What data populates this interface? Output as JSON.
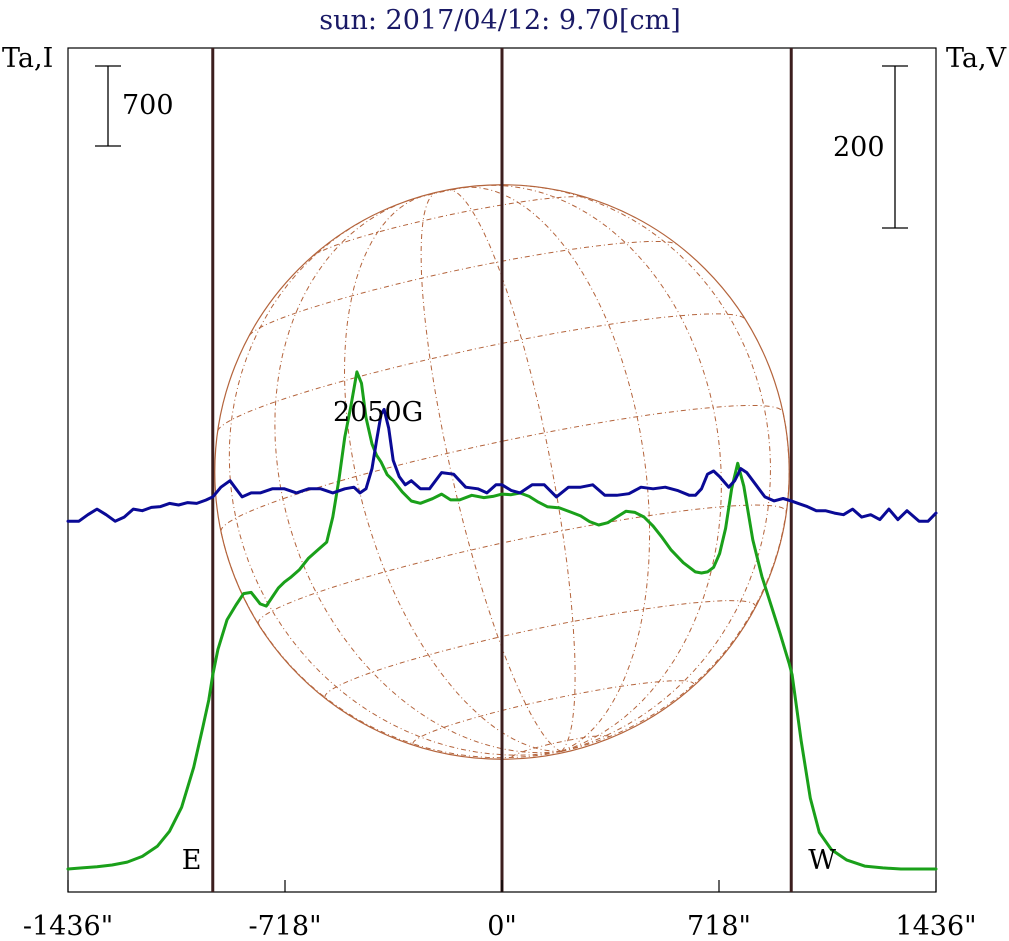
{
  "chart_data": {
    "type": "line",
    "title": "sun: 2017/04/12: 9.70[cm]",
    "title_color": "#1a1a66",
    "left_axis_label": "Ta,I",
    "right_axis_label": "Ta,V",
    "x_tick_labels": [
      "-1436\"",
      "-718\"",
      "0\"",
      "718\"",
      "1436\""
    ],
    "x_ticks": [
      -1436,
      -718,
      0,
      718,
      1436
    ],
    "xlim": [
      -1436,
      1436
    ],
    "limb_labels": {
      "east": "E",
      "west": "W"
    },
    "limb_positions": [
      -957,
      0,
      957
    ],
    "scale_bars": {
      "intensity": {
        "label": "700",
        "value": 700
      },
      "polarization": {
        "label": "200",
        "value": 200
      }
    },
    "annotations": [
      {
        "text": "2050G",
        "x": -400
      }
    ],
    "colors": {
      "intensity": "#1aa01a",
      "polarization": "#0a0a96",
      "limb_lines": "#3c1e1e",
      "disk": "#b4643c",
      "frame": "#000000"
    },
    "series": [
      {
        "name": "Ta,I",
        "axis": "left",
        "x": [
          -1436,
          -1390,
          -1340,
          -1290,
          -1240,
          -1190,
          -1140,
          -1100,
          -1060,
          -1020,
          -990,
          -970,
          -957,
          -940,
          -910,
          -880,
          -855,
          -830,
          -800,
          -780,
          -760,
          -740,
          -720,
          -700,
          -670,
          -640,
          -610,
          -580,
          -560,
          -540,
          -520,
          -500,
          -480,
          -465,
          -450,
          -430,
          -415,
          -400,
          -380,
          -360,
          -330,
          -300,
          -270,
          -230,
          -200,
          -170,
          -140,
          -100,
          -60,
          -30,
          0,
          30,
          60,
          90,
          120,
          150,
          190,
          230,
          260,
          290,
          320,
          350,
          380,
          410,
          440,
          470,
          500,
          530,
          560,
          600,
          640,
          660,
          680,
          700,
          720,
          740,
          760,
          780,
          800,
          830,
          860,
          890,
          920,
          950,
          960,
          990,
          1020,
          1050,
          1090,
          1140,
          1200,
          1260,
          1320,
          1380,
          1436
        ],
        "values": [
          0,
          10,
          20,
          35,
          60,
          110,
          200,
          330,
          540,
          890,
          1240,
          1480,
          1700,
          1920,
          2180,
          2310,
          2410,
          2420,
          2320,
          2300,
          2380,
          2460,
          2510,
          2550,
          2620,
          2720,
          2790,
          2860,
          3080,
          3400,
          3780,
          4050,
          4350,
          4250,
          3950,
          3720,
          3620,
          3560,
          3450,
          3400,
          3300,
          3220,
          3200,
          3240,
          3280,
          3230,
          3230,
          3270,
          3250,
          3260,
          3280,
          3275,
          3290,
          3260,
          3210,
          3170,
          3160,
          3120,
          3090,
          3040,
          3010,
          3030,
          3080,
          3130,
          3120,
          3080,
          3000,
          2900,
          2790,
          2680,
          2600,
          2590,
          2600,
          2640,
          2760,
          2980,
          3330,
          3550,
          3350,
          2880,
          2560,
          2310,
          2060,
          1800,
          1700,
          1120,
          620,
          320,
          170,
          80,
          25,
          10,
          0,
          0,
          0
        ]
      },
      {
        "name": "Ta,V",
        "axis": "right",
        "x": [
          -1436,
          -1400,
          -1370,
          -1340,
          -1310,
          -1280,
          -1250,
          -1220,
          -1190,
          -1160,
          -1130,
          -1100,
          -1070,
          -1040,
          -1010,
          -980,
          -957,
          -930,
          -900,
          -880,
          -860,
          -830,
          -800,
          -760,
          -720,
          -680,
          -640,
          -600,
          -560,
          -520,
          -490,
          -470,
          -450,
          -430,
          -415,
          -400,
          -390,
          -375,
          -360,
          -340,
          -320,
          -300,
          -270,
          -240,
          -200,
          -160,
          -120,
          -80,
          -50,
          -20,
          0,
          30,
          60,
          100,
          140,
          180,
          220,
          260,
          300,
          340,
          380,
          420,
          460,
          500,
          540,
          580,
          620,
          640,
          660,
          680,
          700,
          720,
          750,
          770,
          790,
          810,
          840,
          870,
          900,
          930,
          957,
          980,
          1010,
          1040,
          1070,
          1100,
          1130,
          1160,
          1190,
          1220,
          1250,
          1280,
          1310,
          1340,
          1380,
          1410,
          1436
        ],
        "values": [
          -20,
          -20,
          -12,
          -5,
          -12,
          -20,
          -15,
          -5,
          -7,
          -3,
          -2,
          2,
          0,
          3,
          2,
          6,
          10,
          22,
          30,
          20,
          10,
          15,
          15,
          20,
          20,
          15,
          20,
          20,
          15,
          20,
          22,
          15,
          20,
          45,
          80,
          112,
          118,
          95,
          55,
          35,
          25,
          30,
          20,
          20,
          40,
          38,
          22,
          20,
          15,
          25,
          25,
          18,
          15,
          25,
          25,
          10,
          22,
          22,
          25,
          12,
          12,
          14,
          22,
          20,
          22,
          18,
          12,
          12,
          20,
          38,
          42,
          35,
          22,
          30,
          45,
          40,
          25,
          10,
          5,
          8,
          5,
          2,
          -2,
          -7,
          -7,
          -10,
          -12,
          -5,
          -15,
          -12,
          -18,
          -5,
          -18,
          -7,
          -20,
          -20,
          -10
        ]
      }
    ]
  }
}
